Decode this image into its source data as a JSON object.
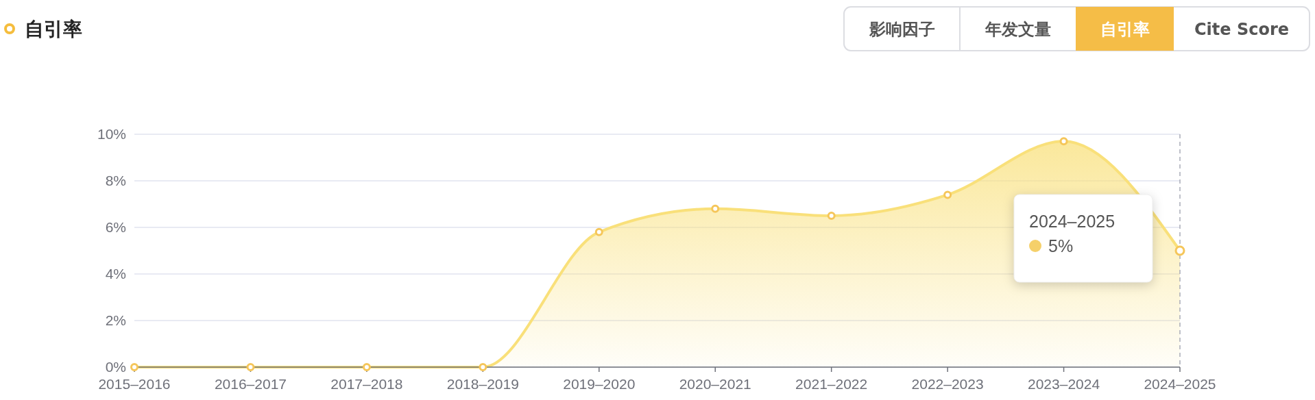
{
  "chart_data": {
    "type": "area",
    "title": "自引率",
    "categories": [
      "2015–2016",
      "2016–2017",
      "2017–2018",
      "2018–2019",
      "2019–2020",
      "2020–2021",
      "2021–2022",
      "2022–2023",
      "2023–2024",
      "2024–2025"
    ],
    "series": [
      {
        "color": "#f9e07a",
        "values": [
          0,
          0,
          0,
          0,
          5.8,
          6.8,
          6.5,
          7.4,
          9.7,
          5
        ]
      }
    ],
    "ylim": [
      0,
      10
    ],
    "yticks": [
      {
        "value": 0,
        "label": "0%"
      },
      {
        "value": 2,
        "label": "2%"
      },
      {
        "value": 4,
        "label": "4%"
      },
      {
        "value": 6,
        "label": "6%"
      },
      {
        "value": 8,
        "label": "8%"
      },
      {
        "value": 10,
        "label": "10%"
      }
    ],
    "grid": "y",
    "marker": "circle",
    "ref_lines": [
      {
        "axis": "x",
        "value": "2024–2025",
        "color": "#a9acb8",
        "line_style": "dashed"
      }
    ],
    "annotations": [
      "影响因子",
      "年发文量",
      "自引率",
      "Cite Score",
      "2024–2025",
      "5%"
    ]
  }
}
